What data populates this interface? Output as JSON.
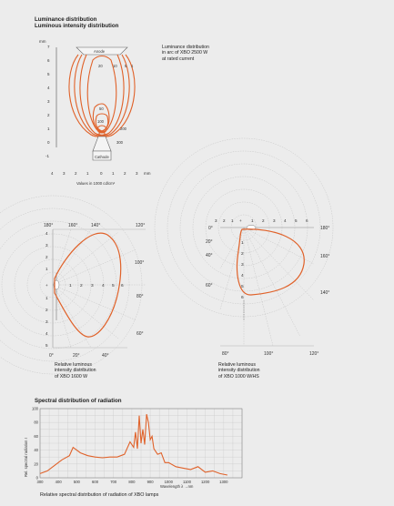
{
  "section1": {
    "title_line1": "Luminance distribution",
    "title_line2": "Luminous intensity distribution",
    "caption_line1": "Luminance distribution",
    "caption_line2": "in arc of XBO 2500 W",
    "caption_line3": "at rated current",
    "y_unit": "mm",
    "y_ticks": [
      "7",
      "6",
      "5",
      "4",
      "3",
      "2",
      "1",
      "0",
      "-1"
    ],
    "x_ticks": [
      "4",
      "3",
      "2",
      "1",
      "0",
      "1",
      "2",
      "3"
    ],
    "x_unit": "mm",
    "x_caption": "Values in 1000 cd/cm²",
    "anode_label": "Anode",
    "cathode_label": "Cathode",
    "contour_labels": [
      "20",
      "10",
      "5",
      "1",
      "50",
      "100",
      "200",
      "300"
    ]
  },
  "polar_left": {
    "top_labels": [
      "180°",
      "160°",
      "140°",
      "120°"
    ],
    "right_labels": [
      "100°",
      "80°",
      "60°"
    ],
    "bottom_labels": [
      "0°",
      "20°",
      "40°"
    ],
    "left_ticks": [
      "4",
      "3",
      "2",
      "1",
      "+",
      "1",
      "2",
      "3",
      "4",
      "5"
    ],
    "radial_ticks": [
      "1",
      "2",
      "3",
      "4",
      "5",
      "6"
    ],
    "caption_line1": "Relative luminous",
    "caption_line2": "intensity distribution",
    "caption_line3": "of XBO 1600 W"
  },
  "polar_right": {
    "top_ticks": [
      "3",
      "2",
      "1",
      "+",
      "1",
      "2",
      "3",
      "4",
      "5",
      "6"
    ],
    "left_labels": [
      "0°",
      "20°",
      "40°",
      "60°"
    ],
    "right_labels": [
      "180°",
      "160°",
      "140°"
    ],
    "inner_ticks": [
      "1",
      "2",
      "3",
      "4",
      "5",
      "6"
    ],
    "bottom_labels": [
      "80°",
      "100°",
      "120°"
    ],
    "caption_line1": "Relative luminous",
    "caption_line2": "intensity distribution",
    "caption_line3": "of XBO 1000 W/HS"
  },
  "spectral": {
    "title": "Spectral distribution of radiation",
    "ylabel": "Rel. spectral radiation I",
    "xlabel": "Wavelength λ →nm",
    "caption": "Relative spectral distribution of radiation of XBO lamps",
    "accent": "#e0622a"
  },
  "chart_data": {
    "type": "line",
    "title": "Spectral distribution of radiation",
    "xlabel": "Wavelength λ",
    "ylabel": "Rel. spectral radiation I",
    "x_unit": "nm",
    "xlim": [
      300,
      1400
    ],
    "ylim": [
      0,
      100
    ],
    "x_ticks": [
      300,
      400,
      500,
      600,
      700,
      800,
      900,
      1000,
      1100,
      1200,
      1300
    ],
    "y_ticks": [
      0,
      20,
      40,
      60,
      80,
      100
    ],
    "x": [
      300,
      340,
      380,
      420,
      460,
      480,
      520,
      560,
      600,
      640,
      680,
      720,
      760,
      790,
      810,
      820,
      830,
      840,
      850,
      860,
      870,
      880,
      890,
      900,
      910,
      920,
      940,
      960,
      980,
      1000,
      1040,
      1080,
      1120,
      1160,
      1200,
      1240,
      1280,
      1320
    ],
    "values": [
      6,
      10,
      18,
      26,
      32,
      44,
      36,
      32,
      30,
      29,
      30,
      30,
      34,
      52,
      44,
      66,
      42,
      90,
      50,
      70,
      48,
      92,
      80,
      55,
      60,
      42,
      34,
      36,
      22,
      22,
      16,
      14,
      12,
      16,
      8,
      10,
      6,
      4
    ]
  }
}
